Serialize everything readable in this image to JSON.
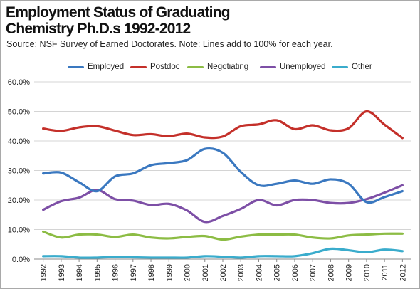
{
  "title_line1": "Employment Status of Graduating",
  "title_line2": "Chemistry Ph.D.s 1992-2012",
  "subtitle": "Source: NSF Survey of Earned Doctorates. Note: Lines add to 100% for each year.",
  "chart_data": {
    "type": "line",
    "title": "Employment Status of Graduating Chemistry Ph.D.s 1992-2012",
    "xlabel": "",
    "ylabel": "",
    "x": [
      "1992",
      "1993",
      "1994",
      "1995",
      "1996",
      "1997",
      "1998",
      "1999",
      "2000",
      "2001",
      "2002",
      "2003",
      "2004",
      "2005",
      "2006",
      "2007",
      "2008",
      "2009",
      "2010",
      "2011",
      "2012"
    ],
    "yticks": [
      "0.0%",
      "10.0%",
      "20.0%",
      "30.0%",
      "40.0%",
      "50.0%",
      "60.0%"
    ],
    "ylim": [
      0,
      60
    ],
    "grid": true,
    "legend_position": "top",
    "series": [
      {
        "name": "Employed",
        "color": "#3a78c0",
        "values": [
          29.0,
          29.3,
          26.0,
          23.0,
          28.0,
          29.0,
          31.8,
          32.5,
          33.5,
          37.3,
          36.0,
          29.5,
          25.0,
          25.5,
          26.6,
          25.5,
          27.0,
          25.5,
          19.3,
          21.0,
          23.0
        ]
      },
      {
        "name": "Postdoc",
        "color": "#c4302a",
        "values": [
          44.2,
          43.4,
          44.6,
          45.0,
          43.5,
          42.0,
          42.3,
          41.6,
          42.5,
          41.2,
          41.5,
          45.0,
          45.6,
          47.0,
          44.0,
          45.3,
          43.6,
          44.3,
          50.0,
          45.5,
          41.0
        ]
      },
      {
        "name": "Negotiating",
        "color": "#8cbc44",
        "values": [
          9.3,
          7.3,
          8.3,
          8.3,
          7.5,
          8.3,
          7.3,
          7.0,
          7.5,
          7.8,
          6.6,
          7.6,
          8.3,
          8.3,
          8.3,
          7.3,
          7.0,
          8.0,
          8.3,
          8.6,
          8.6
        ]
      },
      {
        "name": "Unemployed",
        "color": "#7d4fa6",
        "values": [
          16.7,
          19.6,
          20.8,
          23.4,
          20.3,
          19.8,
          18.3,
          18.7,
          16.5,
          12.6,
          14.6,
          17.0,
          20.0,
          18.2,
          20.0,
          20.0,
          19.0,
          19.0,
          20.3,
          22.5,
          25.0
        ]
      },
      {
        "name": "Other",
        "color": "#3aaccc",
        "values": [
          1.0,
          1.0,
          0.5,
          0.5,
          0.7,
          0.6,
          0.5,
          0.5,
          0.5,
          1.0,
          0.8,
          0.5,
          1.0,
          1.0,
          1.0,
          2.0,
          3.5,
          3.0,
          2.3,
          3.2,
          2.7
        ]
      }
    ]
  }
}
